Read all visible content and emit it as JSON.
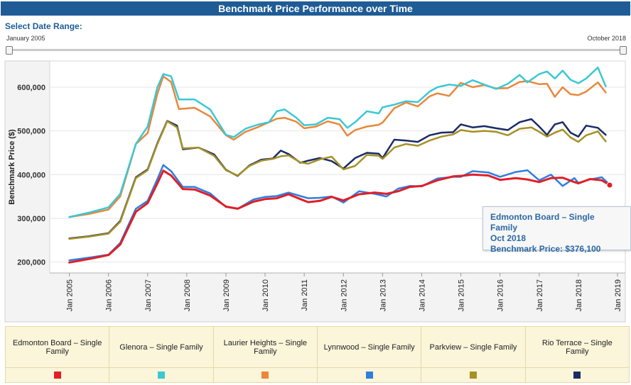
{
  "header": {
    "title": "Benchmark Price Performance over Time"
  },
  "date_range": {
    "label": "Select Date Range:",
    "start": "January 2005",
    "end": "October 2018"
  },
  "tooltip": {
    "series": "Edmonton Board – Single Family",
    "date": "Oct 2018",
    "value_text": "Benchmark Price: $376,100"
  },
  "colors": {
    "title_bg": "#1f5c96",
    "legend_bg": "#fbf5da"
  },
  "chart_data": {
    "type": "line",
    "ylabel": "Benchmark Price ($)",
    "xlabel": "",
    "xlim": [
      2004.5,
      2019.2
    ],
    "ylim": [
      175000,
      660000
    ],
    "y_ticks": [
      200000,
      300000,
      400000,
      500000,
      600000
    ],
    "y_tick_labels": [
      "200,000",
      "300,000",
      "400,000",
      "500,000",
      "600,000"
    ],
    "x_ticks": [
      2005,
      2006,
      2007,
      2008,
      2009,
      2010,
      2011,
      2012,
      2013,
      2014,
      2015,
      2016,
      2017,
      2018,
      2019
    ],
    "x_tick_labels": [
      "Jan 2005",
      "Jan 2006",
      "Jan 2007",
      "Jan 2008",
      "Jan 2009",
      "Jan 2010",
      "Jan 2011",
      "Jan 2012",
      "Jan 2013",
      "Jan 2014",
      "Jan 2015",
      "Jan 2016",
      "Jan 2017",
      "Jan 2018",
      "Jan 2019"
    ],
    "grid": "horizontal",
    "legend_position": "bottom",
    "series": [
      {
        "name": "Edmonton Board – Single Family",
        "color": "#e01f26",
        "width": 3,
        "x": [
          2005,
          2005.5,
          2006,
          2006.3,
          2006.7,
          2007,
          2007.25,
          2007.4,
          2007.6,
          2007.9,
          2008.2,
          2008.6,
          2009,
          2009.3,
          2009.7,
          2010,
          2010.3,
          2010.6,
          2010.9,
          2011.1,
          2011.4,
          2011.7,
          2012,
          2012.4,
          2012.8,
          2013.1,
          2013.4,
          2013.7,
          2014,
          2014.4,
          2014.8,
          2015,
          2015.3,
          2015.7,
          2016,
          2016.4,
          2016.7,
          2017,
          2017.3,
          2017.6,
          2017.9,
          2018,
          2018.3,
          2018.6,
          2018.8
        ],
        "y": [
          199000,
          207000,
          216000,
          240000,
          315000,
          335000,
          380000,
          409000,
          398000,
          367000,
          366000,
          352000,
          327000,
          322000,
          338000,
          344000,
          346000,
          355000,
          344000,
          337000,
          340000,
          349000,
          341000,
          355000,
          359000,
          356000,
          362000,
          372000,
          374000,
          387000,
          396000,
          397000,
          400000,
          398000,
          388000,
          392000,
          389000,
          383000,
          392000,
          393000,
          383000,
          380000,
          390000,
          387000,
          376100
        ]
      },
      {
        "name": "Glenora – Single Family",
        "color": "#3bc8d3",
        "width": 2.5,
        "x": [
          2005,
          2005.5,
          2006,
          2006.3,
          2006.7,
          2007,
          2007.25,
          2007.4,
          2007.6,
          2007.8,
          2008.2,
          2008.6,
          2009,
          2009.2,
          2009.5,
          2009.8,
          2010.1,
          2010.3,
          2010.5,
          2010.8,
          2011,
          2011.3,
          2011.6,
          2011.9,
          2012.1,
          2012.3,
          2012.6,
          2012.9,
          2013,
          2013.3,
          2013.6,
          2013.9,
          2014.2,
          2014.4,
          2014.7,
          2015,
          2015.3,
          2015.6,
          2015.9,
          2016.2,
          2016.5,
          2016.7,
          2017,
          2017.2,
          2017.4,
          2017.6,
          2017.8,
          2018,
          2018.2,
          2018.5,
          2018.7
        ],
        "y": [
          303000,
          313000,
          325000,
          356000,
          470000,
          510000,
          600000,
          630000,
          625000,
          572000,
          572000,
          549000,
          491000,
          486000,
          505000,
          514000,
          520000,
          545000,
          549000,
          530000,
          513000,
          515000,
          530000,
          527000,
          507000,
          520000,
          545000,
          540000,
          554000,
          560000,
          568000,
          566000,
          590000,
          600000,
          606000,
          603000,
          616000,
          606000,
          596000,
          608000,
          628000,
          611000,
          630000,
          636000,
          620000,
          638000,
          617000,
          609000,
          620000,
          645000,
          602000
        ]
      },
      {
        "name": "Laurier Heights – Single Family",
        "color": "#e9873b",
        "width": 2.5,
        "x": [
          2005,
          2005.5,
          2006,
          2006.3,
          2006.7,
          2007,
          2007.25,
          2007.4,
          2007.6,
          2007.8,
          2008.2,
          2008.6,
          2009,
          2009.2,
          2009.5,
          2009.8,
          2010.1,
          2010.3,
          2010.5,
          2010.8,
          2011,
          2011.3,
          2011.6,
          2011.9,
          2012.1,
          2012.3,
          2012.6,
          2012.9,
          2013,
          2013.3,
          2013.6,
          2013.9,
          2014.2,
          2014.4,
          2014.7,
          2015,
          2015.3,
          2015.6,
          2015.9,
          2016.2,
          2016.5,
          2016.7,
          2017,
          2017.2,
          2017.4,
          2017.6,
          2017.8,
          2018,
          2018.2,
          2018.5,
          2018.7
        ],
        "y": [
          303000,
          310000,
          320000,
          350000,
          470000,
          495000,
          585000,
          625000,
          612000,
          550000,
          553000,
          533000,
          490000,
          480000,
          498000,
          508000,
          520000,
          528000,
          530000,
          521000,
          506000,
          510000,
          522000,
          515000,
          489000,
          502000,
          510000,
          514000,
          519000,
          552000,
          565000,
          556000,
          579000,
          586000,
          580000,
          610000,
          600000,
          605000,
          597000,
          598000,
          612000,
          614000,
          607000,
          608000,
          578000,
          600000,
          584000,
          582000,
          590000,
          611000,
          588000
        ]
      },
      {
        "name": "Lynnwood – Single Family",
        "color": "#2f7ee0",
        "width": 2.5,
        "x": [
          2005,
          2005.5,
          2006,
          2006.3,
          2006.7,
          2007,
          2007.25,
          2007.4,
          2007.6,
          2007.9,
          2008.2,
          2008.6,
          2009,
          2009.3,
          2009.7,
          2010,
          2010.3,
          2010.6,
          2010.9,
          2011.1,
          2011.4,
          2011.7,
          2012,
          2012.4,
          2012.8,
          2013.1,
          2013.4,
          2013.7,
          2014,
          2014.4,
          2014.8,
          2015,
          2015.3,
          2015.7,
          2016,
          2016.4,
          2016.7,
          2017,
          2017.3,
          2017.6,
          2017.9,
          2018,
          2018.3,
          2018.6,
          2018.8
        ],
        "y": [
          204000,
          210000,
          217000,
          244000,
          322000,
          340000,
          390000,
          422000,
          408000,
          372000,
          372000,
          357000,
          326000,
          322000,
          343000,
          349000,
          351000,
          359000,
          351000,
          346000,
          347000,
          350000,
          336000,
          362000,
          356000,
          350000,
          368000,
          374000,
          373000,
          391000,
          395000,
          395000,
          408000,
          405000,
          395000,
          406000,
          410000,
          387000,
          400000,
          374000,
          392000,
          381000,
          389000,
          394000,
          377000
        ]
      },
      {
        "name": "Parkview – Single Family",
        "color": "#a59126",
        "width": 2.5,
        "x": [
          2005,
          2005.5,
          2006,
          2006.3,
          2006.7,
          2007,
          2007.25,
          2007.5,
          2007.75,
          2007.9,
          2008.3,
          2008.7,
          2009,
          2009.3,
          2009.6,
          2009.9,
          2010.2,
          2010.4,
          2010.6,
          2010.9,
          2011.1,
          2011.4,
          2011.7,
          2012,
          2012.3,
          2012.6,
          2012.9,
          2013,
          2013.3,
          2013.6,
          2013.9,
          2014.2,
          2014.5,
          2014.8,
          2015,
          2015.3,
          2015.6,
          2015.9,
          2016.2,
          2016.5,
          2016.8,
          2017,
          2017.2,
          2017.4,
          2017.6,
          2017.8,
          2018,
          2018.2,
          2018.5,
          2018.7
        ],
        "y": [
          253000,
          258000,
          265000,
          292000,
          392000,
          410000,
          470000,
          522000,
          508000,
          460000,
          462000,
          443000,
          410000,
          398000,
          420000,
          432000,
          436000,
          442000,
          444000,
          428000,
          425000,
          435000,
          441000,
          412000,
          420000,
          445000,
          443000,
          436000,
          462000,
          470000,
          466000,
          478000,
          487000,
          492000,
          502000,
          498000,
          500000,
          498000,
          490000,
          505000,
          508000,
          498000,
          487000,
          496000,
          503000,
          485000,
          475000,
          490000,
          499000,
          476000
        ]
      },
      {
        "name": "Rio Terrace – Single Family",
        "color": "#1a2b66",
        "width": 2.5,
        "x": [
          2005,
          2005.5,
          2006,
          2006.3,
          2006.7,
          2007,
          2007.25,
          2007.5,
          2007.75,
          2007.9,
          2008.3,
          2008.7,
          2009,
          2009.3,
          2009.6,
          2009.9,
          2010.2,
          2010.4,
          2010.6,
          2010.9,
          2011.1,
          2011.4,
          2011.7,
          2012,
          2012.3,
          2012.6,
          2012.9,
          2013,
          2013.3,
          2013.6,
          2013.9,
          2014.2,
          2014.5,
          2014.8,
          2015,
          2015.3,
          2015.6,
          2015.9,
          2016.2,
          2016.5,
          2016.8,
          2017,
          2017.2,
          2017.4,
          2017.6,
          2017.8,
          2018,
          2018.2,
          2018.5,
          2018.7
        ],
        "y": [
          254000,
          259000,
          266000,
          294000,
          394000,
          412000,
          472000,
          523000,
          512000,
          458000,
          462000,
          446000,
          411000,
          397000,
          421000,
          434000,
          437000,
          455000,
          447000,
          427000,
          432000,
          438000,
          431000,
          414000,
          438000,
          450000,
          448000,
          438000,
          480000,
          478000,
          475000,
          490000,
          496000,
          497000,
          515000,
          508000,
          511000,
          506000,
          502000,
          520000,
          527000,
          510000,
          491000,
          515000,
          520000,
          496000,
          487000,
          512000,
          507000,
          491000
        ]
      }
    ]
  }
}
